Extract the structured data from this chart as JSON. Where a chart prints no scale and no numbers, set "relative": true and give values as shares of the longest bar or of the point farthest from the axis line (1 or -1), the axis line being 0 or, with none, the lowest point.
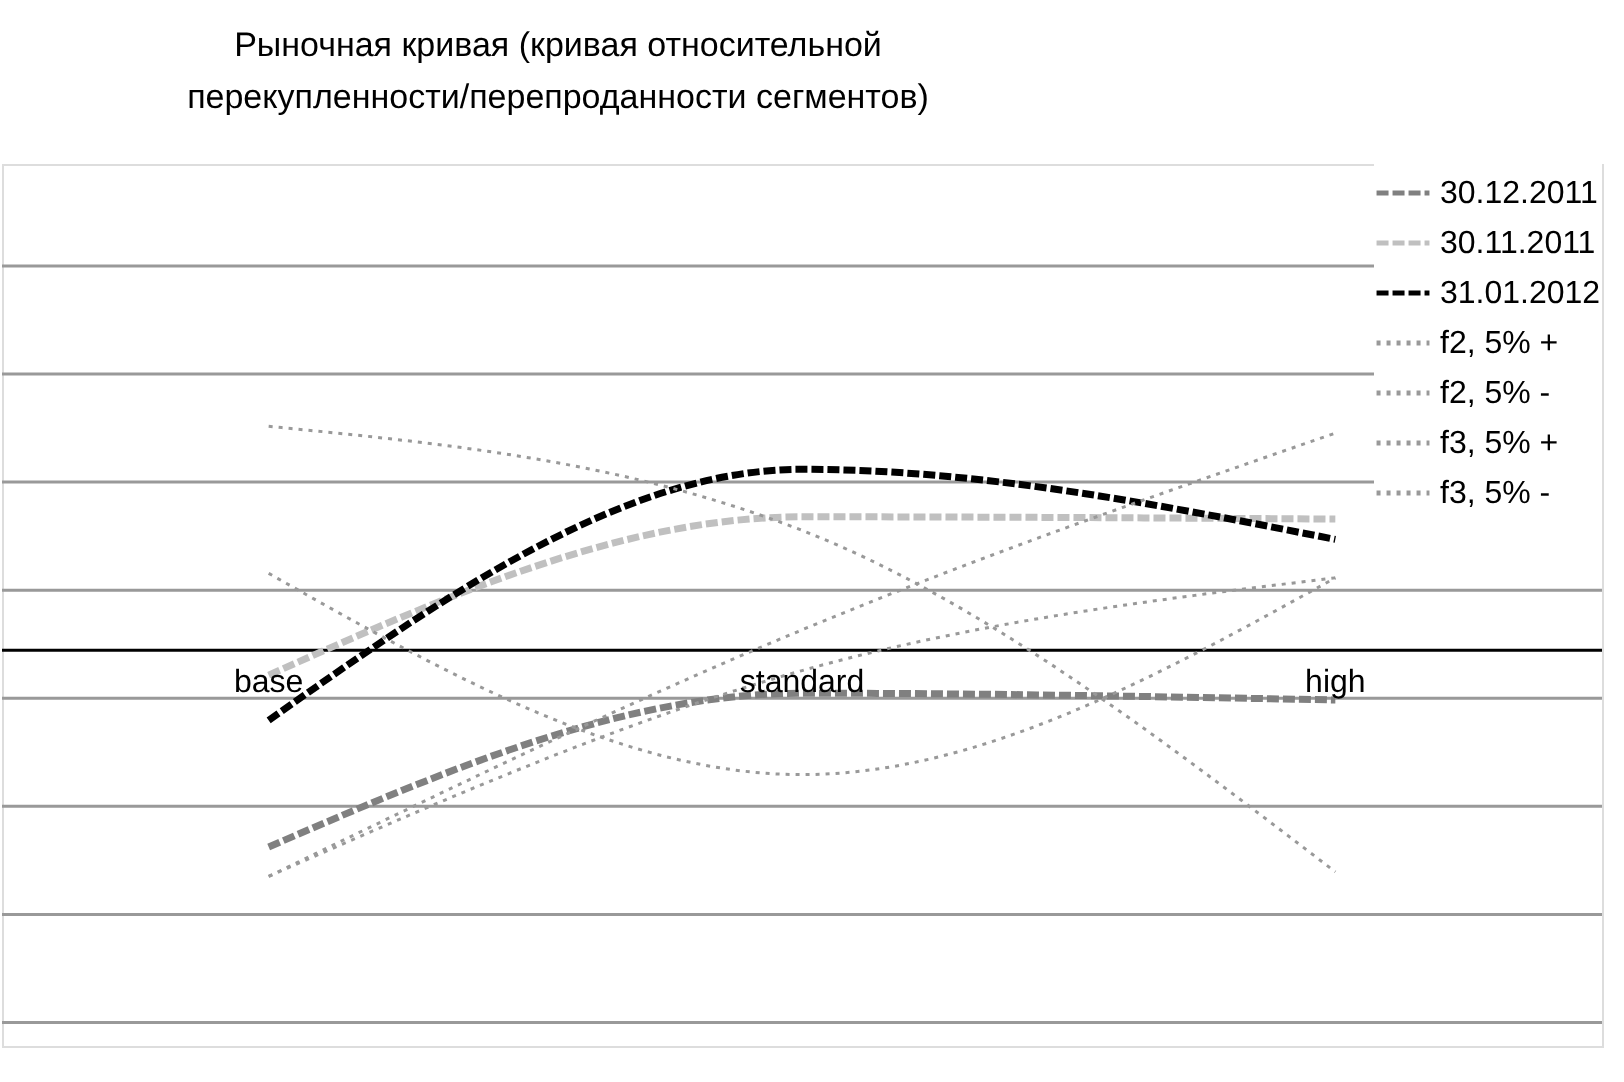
{
  "chart_data": {
    "type": "line",
    "title": "Рыночная кривая (кривая относительной перекупленности/перепроданности сегментов)",
    "categories": [
      "base",
      "standard",
      "high"
    ],
    "relative": true,
    "grid": "y",
    "legend": "top right",
    "series": [
      {
        "name": "30.12.2011",
        "color": "#808080",
        "line_style": "dashed",
        "values": [
          -0.87,
          -0.19,
          -0.22
        ]
      },
      {
        "name": "30.11.2011",
        "color": "#c0c0c0",
        "line_style": "dashed",
        "values": [
          -0.11,
          0.59,
          0.58
        ]
      },
      {
        "name": "31.01.2012",
        "color": "#000000",
        "line_style": "dashed",
        "values": [
          -0.31,
          0.8,
          0.49
        ]
      },
      {
        "name": "f2, 5% +",
        "color": "#999999",
        "line_style": "dotted",
        "values": [
          0.99,
          0.53,
          -0.98
        ]
      },
      {
        "name": "f2, 5% -",
        "color": "#999999",
        "line_style": "dotted",
        "values": [
          -1,
          0.09,
          0.96
        ]
      },
      {
        "name": "f3, 5% +",
        "color": "#999999",
        "line_style": "dotted",
        "values": [
          0.34,
          -0.55,
          0.32
        ]
      },
      {
        "name": "f3, 5% -",
        "color": "#999999",
        "line_style": "dotted",
        "values": [
          -1,
          -0.09,
          0.32
        ]
      }
    ]
  }
}
